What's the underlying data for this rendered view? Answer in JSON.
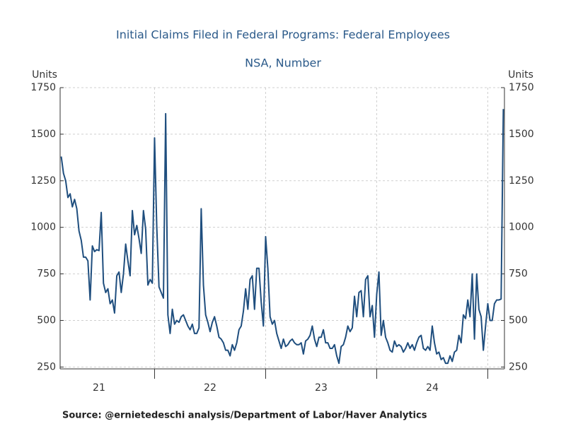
{
  "chart_data": {
    "type": "line",
    "title": "Initial Claims Filed in Federal Programs: Federal Employees",
    "subtitle": "NSA, Number",
    "y_label": "Units",
    "y2_label": "Units",
    "source": "Source:  @ernietedeschi analysis/Department of Labor/Haver Analytics",
    "xlim": [
      2021.15,
      2025.15
    ],
    "xticks": [
      {
        "value": 2021.5,
        "label": "21"
      },
      {
        "value": 2022.5,
        "label": "22"
      },
      {
        "value": 2023.5,
        "label": "23"
      },
      {
        "value": 2024.5,
        "label": "24"
      }
    ],
    "xgrid": [
      2022,
      2023,
      2024,
      2025
    ],
    "ylim": [
      240,
      1750
    ],
    "yticks": [
      250,
      500,
      750,
      1000,
      1250,
      1500,
      1750
    ],
    "y2lim": [
      240,
      1750
    ],
    "y2ticks": [
      250,
      500,
      750,
      1000,
      1250,
      1500,
      1750
    ],
    "grid": true,
    "x": [
      2021.16,
      2021.18,
      2021.2,
      2021.22,
      2021.24,
      2021.26,
      2021.28,
      2021.3,
      2021.32,
      2021.34,
      2021.36,
      2021.38,
      2021.4,
      2021.42,
      2021.44,
      2021.46,
      2021.48,
      2021.5,
      2021.52,
      2021.54,
      2021.56,
      2021.58,
      2021.6,
      2021.62,
      2021.64,
      2021.66,
      2021.68,
      2021.7,
      2021.72,
      2021.74,
      2021.76,
      2021.78,
      2021.8,
      2021.82,
      2021.84,
      2021.86,
      2021.88,
      2021.9,
      2021.92,
      2021.94,
      2021.96,
      2021.98,
      2022.0,
      2022.02,
      2022.04,
      2022.06,
      2022.08,
      2022.1,
      2022.12,
      2022.14,
      2022.16,
      2022.18,
      2022.2,
      2022.22,
      2022.24,
      2022.26,
      2022.28,
      2022.3,
      2022.32,
      2022.34,
      2022.36,
      2022.38,
      2022.4,
      2022.42,
      2022.44,
      2022.46,
      2022.48,
      2022.5,
      2022.52,
      2022.54,
      2022.56,
      2022.58,
      2022.6,
      2022.62,
      2022.64,
      2022.66,
      2022.68,
      2022.7,
      2022.72,
      2022.74,
      2022.76,
      2022.78,
      2022.8,
      2022.82,
      2022.84,
      2022.86,
      2022.88,
      2022.9,
      2022.92,
      2022.94,
      2022.96,
      2022.98,
      2023.0,
      2023.02,
      2023.04,
      2023.06,
      2023.08,
      2023.1,
      2023.12,
      2023.14,
      2023.16,
      2023.18,
      2023.2,
      2023.22,
      2023.24,
      2023.26,
      2023.28,
      2023.3,
      2023.32,
      2023.34,
      2023.36,
      2023.38,
      2023.4,
      2023.42,
      2023.44,
      2023.46,
      2023.48,
      2023.5,
      2023.52,
      2023.54,
      2023.56,
      2023.58,
      2023.6,
      2023.62,
      2023.64,
      2023.66,
      2023.68,
      2023.7,
      2023.72,
      2023.74,
      2023.76,
      2023.78,
      2023.8,
      2023.82,
      2023.84,
      2023.86,
      2023.88,
      2023.9,
      2023.92,
      2023.94,
      2023.96,
      2023.98,
      2024.0,
      2024.02,
      2024.04,
      2024.06,
      2024.08,
      2024.1,
      2024.12,
      2024.14,
      2024.16,
      2024.18,
      2024.2,
      2024.22,
      2024.24,
      2024.26,
      2024.28,
      2024.3,
      2024.32,
      2024.34,
      2024.36,
      2024.38,
      2024.4,
      2024.42,
      2024.44,
      2024.46,
      2024.48,
      2024.5,
      2024.52,
      2024.54,
      2024.56,
      2024.58,
      2024.6,
      2024.62,
      2024.64,
      2024.66,
      2024.68,
      2024.7,
      2024.72,
      2024.74,
      2024.76,
      2024.78,
      2024.8,
      2024.82,
      2024.84,
      2024.86,
      2024.88,
      2024.9,
      2024.92,
      2024.94,
      2024.96,
      2024.98,
      2025.0,
      2025.02,
      2025.04,
      2025.06,
      2025.08,
      2025.1,
      2025.12,
      2025.14
    ],
    "series": [
      {
        "name": "Federal Employees",
        "color": "#1f4e7e",
        "values": [
          1380,
          1290,
          1250,
          1160,
          1180,
          1110,
          1150,
          1100,
          980,
          930,
          840,
          840,
          820,
          610,
          900,
          870,
          880,
          875,
          1080,
          700,
          650,
          670,
          590,
          610,
          540,
          740,
          760,
          650,
          750,
          910,
          820,
          740,
          1090,
          960,
          1010,
          940,
          860,
          1090,
          990,
          690,
          720,
          700,
          1480,
          1000,
          680,
          650,
          620,
          1610,
          530,
          430,
          560,
          480,
          500,
          490,
          520,
          530,
          500,
          470,
          450,
          480,
          430,
          430,
          460,
          1100,
          690,
          530,
          490,
          440,
          490,
          520,
          470,
          410,
          400,
          380,
          340,
          340,
          310,
          370,
          340,
          380,
          450,
          470,
          550,
          670,
          560,
          720,
          740,
          560,
          780,
          780,
          600,
          470,
          950,
          780,
          520,
          480,
          500,
          430,
          390,
          350,
          400,
          360,
          370,
          390,
          400,
          380,
          370,
          370,
          380,
          320,
          390,
          400,
          420,
          470,
          400,
          360,
          410,
          410,
          450,
          380,
          380,
          350,
          350,
          370,
          310,
          270,
          360,
          370,
          410,
          470,
          440,
          460,
          630,
          520,
          650,
          660,
          520,
          720,
          740,
          520,
          580,
          410,
          640,
          760,
          420,
          500,
          410,
          380,
          340,
          330,
          390,
          360,
          370,
          360,
          330,
          350,
          380,
          350,
          370,
          340,
          380,
          410,
          420,
          350,
          340,
          360,
          340,
          470,
          380,
          320,
          330,
          290,
          300,
          270,
          270,
          310,
          280,
          330,
          340,
          420,
          380,
          530,
          510,
          610,
          520,
          750,
          400,
          750,
          560,
          520,
          340,
          470,
          590,
          500,
          500,
          590,
          610,
          610,
          615,
          1635
        ]
      }
    ]
  }
}
